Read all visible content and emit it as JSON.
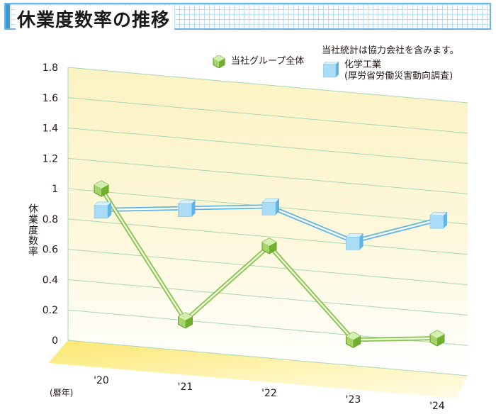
{
  "title": "休業度数率の推移",
  "note": "当社統計は協力会社を含みます。",
  "legend": {
    "group": "当社グループ全体",
    "chem_line1": "化学工業",
    "chem_line2": "(厚労省労働災害動向調査)"
  },
  "ylabel": "休業度数率",
  "xunit": "(暦年)",
  "colors": {
    "group": "#7dbe3c",
    "chem": "#5fb4e6",
    "plane": "#fbf3c2",
    "grid": "#a9d6b8"
  },
  "chart_data": {
    "type": "line",
    "categories": [
      "'20",
      "'21",
      "'22",
      "'23",
      "'24"
    ],
    "ylim": [
      0,
      1.8
    ],
    "yticks": [
      "0",
      "0.2",
      "0.4",
      "0.6",
      "0.8",
      "1",
      "1.2",
      "1.4",
      "1.6",
      "1.8"
    ],
    "ylabel": "休業度数率",
    "xlabel": "(暦年)",
    "grid": true,
    "legend_position": "top-right",
    "series": [
      {
        "name": "当社グループ全体",
        "values": [
          1.02,
          0.2,
          0.74,
          0.17,
          0.23
        ]
      },
      {
        "name": "化学工業 (厚労省労働災害動向調査)",
        "values": [
          0.88,
          0.94,
          1.0,
          0.82,
          1.01
        ]
      }
    ]
  }
}
